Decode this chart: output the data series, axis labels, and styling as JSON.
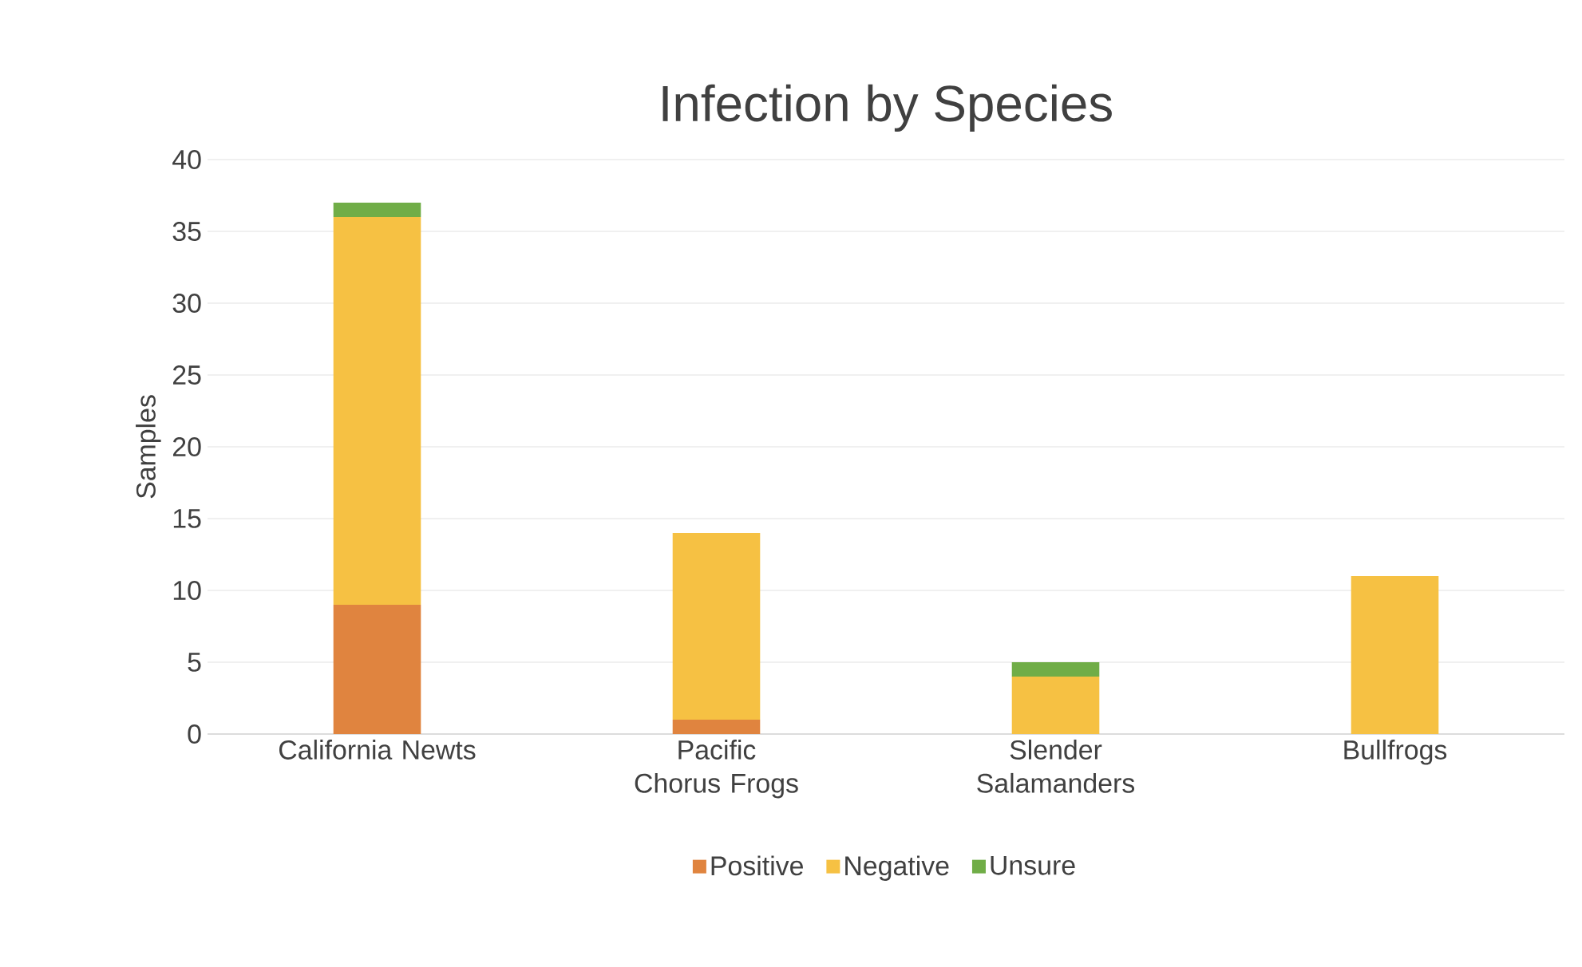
{
  "chart_data": {
    "type": "bar",
    "title": "Infection by Species",
    "ylabel": "Samples",
    "categories": [
      "California Newts",
      "Pacific Chorus Frogs",
      "Slender Salamanders",
      "Bullfrogs"
    ],
    "stacked": true,
    "series": [
      {
        "name": "Positive",
        "color": "#e0843f",
        "values": [
          9,
          1,
          0,
          0
        ]
      },
      {
        "name": "Negative",
        "color": "#f6c143",
        "values": [
          27,
          13,
          4,
          11
        ]
      },
      {
        "name": "Unsure",
        "color": "#70ad47",
        "values": [
          1,
          0,
          1,
          0
        ]
      }
    ],
    "ylim": [
      0,
      40
    ],
    "yticks": [
      0,
      5,
      10,
      15,
      20,
      25,
      30,
      35,
      40
    ],
    "grid": "y",
    "legend": "bottom"
  }
}
